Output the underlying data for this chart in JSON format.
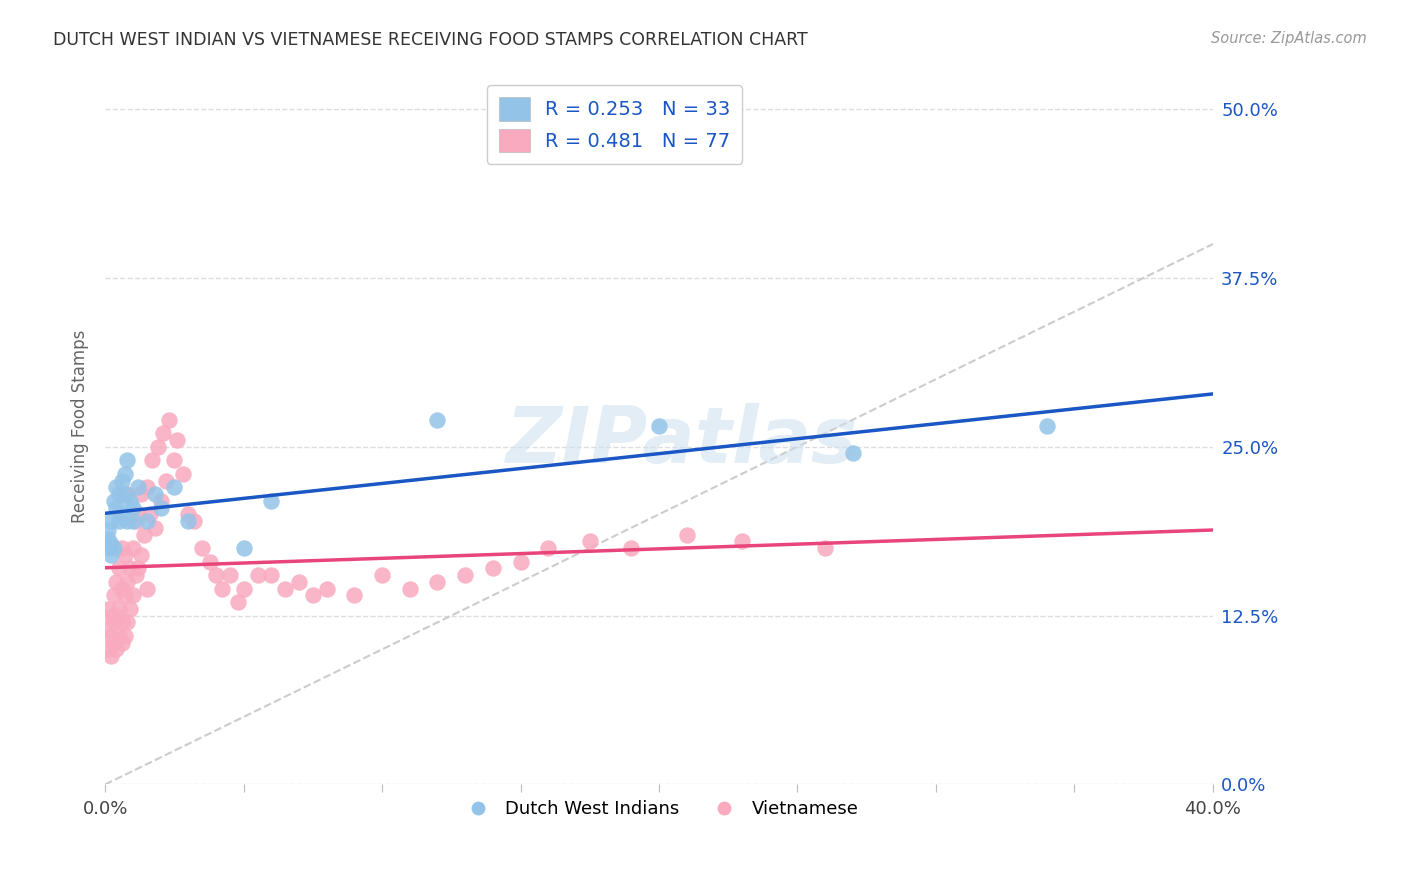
{
  "title": "DUTCH WEST INDIAN VS VIETNAMESE RECEIVING FOOD STAMPS CORRELATION CHART",
  "source": "Source: ZipAtlas.com",
  "ylabel": "Receiving Food Stamps",
  "xlim": [
    0.0,
    0.4
  ],
  "ylim": [
    0.0,
    0.53
  ],
  "yticks": [
    0.0,
    0.125,
    0.25,
    0.375,
    0.5
  ],
  "ytick_labels": [
    "0.0%",
    "12.5%",
    "25.0%",
    "37.5%",
    "50.0%"
  ],
  "xticks": [
    0.0,
    0.05,
    0.1,
    0.15,
    0.2,
    0.25,
    0.3,
    0.35,
    0.4
  ],
  "xtick_labels": [
    "0.0%",
    "",
    "",
    "",
    "",
    "",
    "",
    "",
    "40.0%"
  ],
  "blue_color": "#93C4E8",
  "pink_color": "#F9AABF",
  "blue_line_color": "#1A56C4",
  "pink_line_color": "#E8457A",
  "diag_line_color": "#CCCCCC",
  "legend_label_blue": "Dutch West Indians",
  "legend_label_pink": "Vietnamese",
  "blue_R": "0.253",
  "blue_N": "33",
  "pink_R": "0.481",
  "pink_N": "77",
  "blue_x": [
    0.001,
    0.001,
    0.001,
    0.002,
    0.002,
    0.002,
    0.003,
    0.003,
    0.004,
    0.004,
    0.005,
    0.005,
    0.006,
    0.006,
    0.007,
    0.007,
    0.008,
    0.008,
    0.009,
    0.01,
    0.01,
    0.012,
    0.015,
    0.018,
    0.02,
    0.025,
    0.03,
    0.05,
    0.06,
    0.12,
    0.2,
    0.27,
    0.34
  ],
  "blue_y": [
    0.175,
    0.182,
    0.188,
    0.17,
    0.178,
    0.195,
    0.175,
    0.21,
    0.205,
    0.22,
    0.195,
    0.215,
    0.2,
    0.225,
    0.215,
    0.23,
    0.195,
    0.24,
    0.21,
    0.195,
    0.205,
    0.22,
    0.195,
    0.215,
    0.205,
    0.22,
    0.195,
    0.175,
    0.21,
    0.27,
    0.265,
    0.245,
    0.265
  ],
  "pink_x": [
    0.001,
    0.001,
    0.001,
    0.002,
    0.002,
    0.002,
    0.003,
    0.003,
    0.003,
    0.004,
    0.004,
    0.004,
    0.005,
    0.005,
    0.005,
    0.006,
    0.006,
    0.006,
    0.006,
    0.007,
    0.007,
    0.007,
    0.008,
    0.008,
    0.008,
    0.009,
    0.009,
    0.01,
    0.01,
    0.011,
    0.011,
    0.012,
    0.012,
    0.013,
    0.013,
    0.014,
    0.015,
    0.015,
    0.016,
    0.017,
    0.018,
    0.019,
    0.02,
    0.021,
    0.022,
    0.023,
    0.025,
    0.026,
    0.028,
    0.03,
    0.032,
    0.035,
    0.038,
    0.04,
    0.042,
    0.045,
    0.048,
    0.05,
    0.055,
    0.06,
    0.065,
    0.07,
    0.075,
    0.08,
    0.09,
    0.1,
    0.11,
    0.12,
    0.13,
    0.14,
    0.15,
    0.16,
    0.175,
    0.19,
    0.21,
    0.23,
    0.26
  ],
  "pink_y": [
    0.1,
    0.115,
    0.13,
    0.095,
    0.11,
    0.125,
    0.105,
    0.12,
    0.14,
    0.1,
    0.125,
    0.15,
    0.11,
    0.13,
    0.16,
    0.105,
    0.12,
    0.145,
    0.175,
    0.11,
    0.14,
    0.17,
    0.12,
    0.15,
    0.215,
    0.13,
    0.16,
    0.14,
    0.175,
    0.155,
    0.195,
    0.16,
    0.2,
    0.17,
    0.215,
    0.185,
    0.145,
    0.22,
    0.2,
    0.24,
    0.19,
    0.25,
    0.21,
    0.26,
    0.225,
    0.27,
    0.24,
    0.255,
    0.23,
    0.2,
    0.195,
    0.175,
    0.165,
    0.155,
    0.145,
    0.155,
    0.135,
    0.145,
    0.155,
    0.155,
    0.145,
    0.15,
    0.14,
    0.145,
    0.14,
    0.155,
    0.145,
    0.15,
    0.155,
    0.16,
    0.165,
    0.175,
    0.18,
    0.175,
    0.185,
    0.18,
    0.175
  ],
  "watermark": "ZIPatlas",
  "bg_color": "#FFFFFF",
  "grid_color": "#DDDDDD"
}
